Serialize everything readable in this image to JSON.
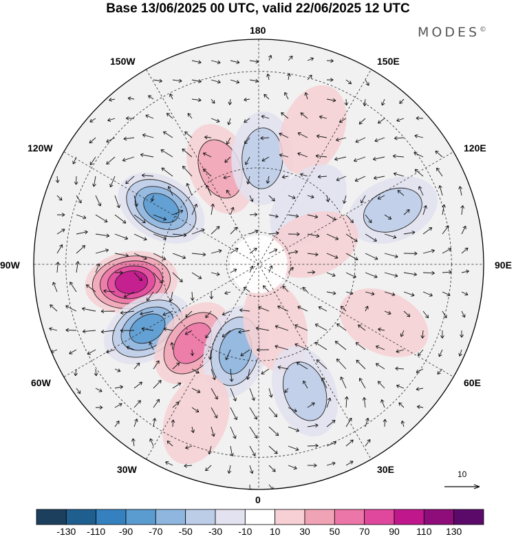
{
  "title": "Base 13/06/2025 00 UTC, valid 22/06/2025 12 UTC",
  "brand": "MODES",
  "brand_mark": "©",
  "longitude_labels": {
    "top": "180",
    "upper_right": "150E",
    "right_upper": "120E",
    "right": "90E",
    "right_lower": "60E",
    "lower_right": "30E",
    "bottom": "0",
    "lower_left": "30W",
    "left_lower": "60W",
    "left": "90W",
    "left_upper": "120W",
    "upper_left": "150W"
  },
  "reference_vector": {
    "label": "10",
    "value": 10
  },
  "colorbar": {
    "labels": [
      "-130",
      "-110",
      "-90",
      "-70",
      "-50",
      "-30",
      "-10",
      "10",
      "30",
      "50",
      "70",
      "90",
      "110",
      "130"
    ],
    "colors": [
      "#1c3f5e",
      "#1f5f8f",
      "#3581bf",
      "#5a9bd0",
      "#8eb6de",
      "#bccde8",
      "#e2e2f0",
      "#ffffff",
      "#f6d0d4",
      "#f1a3b6",
      "#ec76a7",
      "#e0489d",
      "#c0188c",
      "#8e0d7a",
      "#5c0a6a"
    ]
  },
  "anomaly_centers": [
    {
      "name": "east-pacific-positive",
      "lon": -82,
      "lat": 50,
      "value": 110
    },
    {
      "name": "canada-negative",
      "lon": -120,
      "lat": 55,
      "value": -90
    },
    {
      "name": "alaska-positive",
      "lon": -158,
      "lat": 58,
      "value": 50
    },
    {
      "name": "bering-negative",
      "lon": 178,
      "lat": 57,
      "value": -50
    },
    {
      "name": "kamchatka-positive",
      "lon": 158,
      "lat": 45,
      "value": 30
    },
    {
      "name": "east-siberia-negative",
      "lon": 140,
      "lat": 66,
      "value": -30
    },
    {
      "name": "central-siberia-negative",
      "lon": 112,
      "lat": 45,
      "value": -50
    },
    {
      "name": "north-siberia-positive",
      "lon": 110,
      "lat": 72,
      "value": 30
    },
    {
      "name": "atlantic-negative",
      "lon": -60,
      "lat": 50,
      "value": -90
    },
    {
      "name": "greenland-positive",
      "lon": -40,
      "lat": 58,
      "value": 70
    },
    {
      "name": "iceland-negative",
      "lon": -15,
      "lat": 62,
      "value": -70
    },
    {
      "name": "scandinavia-positive",
      "lon": 15,
      "lat": 70,
      "value": 30
    },
    {
      "name": "europe-negative",
      "lon": 20,
      "lat": 48,
      "value": -50
    },
    {
      "name": "north-atlantic-positive",
      "lon": -22,
      "lat": 38,
      "value": 30
    },
    {
      "name": "central-asia-positive",
      "lon": 65,
      "lat": 47,
      "value": 30
    }
  ]
}
